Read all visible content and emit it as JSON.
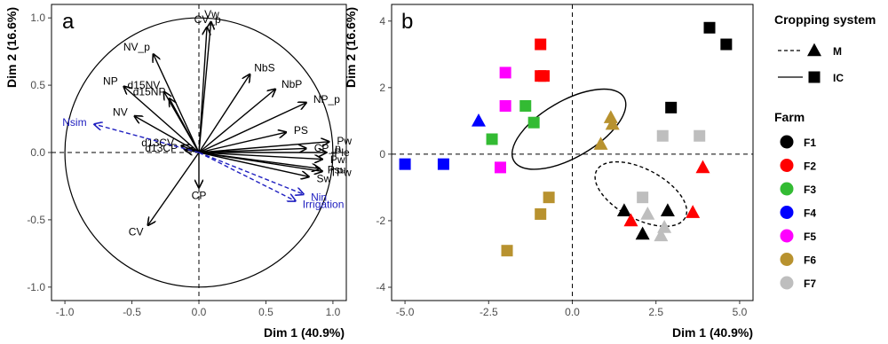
{
  "chart_data": [
    {
      "type": "scatter",
      "panel_label": "a",
      "xlabel": "Dim 1 (40.9%)",
      "ylabel": "Dim 2 (16.6%)",
      "xlim": [
        -1.1,
        1.1
      ],
      "ylim": [
        -1.1,
        1.1
      ],
      "xticks": [
        "-1.0",
        "-0.5",
        "0.0",
        "0.5",
        "1.0"
      ],
      "yticks": [
        "-1.0",
        "-0.5",
        "0.0",
        "0.5",
        "1.0"
      ],
      "active_color": "#000000",
      "supplementary_color": "#2020c0",
      "vectors": [
        {
          "name": "CV_p",
          "x": 0.06,
          "y": 0.93
        },
        {
          "name": "Vw",
          "x": 0.09,
          "y": 0.97
        },
        {
          "name": "NV_p",
          "x": -0.34,
          "y": 0.73
        },
        {
          "name": "NP",
          "x": -0.56,
          "y": 0.49
        },
        {
          "name": "d15NV",
          "x": -0.26,
          "y": 0.45
        },
        {
          "name": "d15NP",
          "x": -0.22,
          "y": 0.4
        },
        {
          "name": "NV",
          "x": -0.48,
          "y": 0.27
        },
        {
          "name": "NbS",
          "x": 0.38,
          "y": 0.58
        },
        {
          "name": "NbP",
          "x": 0.57,
          "y": 0.47
        },
        {
          "name": "NP_p",
          "x": 0.8,
          "y": 0.37
        },
        {
          "name": "PS",
          "x": 0.65,
          "y": 0.15
        },
        {
          "name": "Pw",
          "x": 0.97,
          "y": 0.08
        },
        {
          "name": "CP_p",
          "x": 0.8,
          "y": 0.03
        },
        {
          "name": "Ple",
          "x": 0.95,
          "y": 0.0
        },
        {
          "name": "Pwi",
          "x": 0.92,
          "y": -0.05
        },
        {
          "name": "Psu",
          "x": 0.9,
          "y": -0.12
        },
        {
          "name": "Sw",
          "x": 0.82,
          "y": -0.18
        },
        {
          "name": "TPw",
          "x": 0.92,
          "y": -0.14
        },
        {
          "name": "d13CV",
          "x": -0.13,
          "y": 0.05
        },
        {
          "name": "d13CP",
          "x": -0.1,
          "y": 0.02
        },
        {
          "name": "CP",
          "x": 0.0,
          "y": -0.26
        },
        {
          "name": "CV",
          "x": -0.38,
          "y": -0.54
        }
      ],
      "supplementary": [
        {
          "name": "Nsim",
          "x": -0.78,
          "y": 0.21
        },
        {
          "name": "Irrigation",
          "x": 0.72,
          "y": -0.36
        },
        {
          "name": "Nin",
          "x": 0.78,
          "y": -0.31
        }
      ]
    },
    {
      "type": "scatter",
      "panel_label": "b",
      "xlabel": "Dim 1 (40.9%)",
      "ylabel": "Dim 2 (16.6%)",
      "xlim": [
        -5.4,
        5.4
      ],
      "ylim": [
        -4.4,
        4.5
      ],
      "xticks": [
        -5.0,
        -2.5,
        0.0,
        2.5,
        5.0
      ],
      "xtick_labels": [
        "-5.0",
        "-2.5",
        "0.0",
        "2.5",
        "5.0"
      ],
      "yticks": [
        -4,
        -2,
        0,
        2,
        4
      ],
      "ytick_labels": [
        "-4",
        "-2",
        "0",
        "2",
        "4"
      ],
      "legend": {
        "cropping_title": "Cropping system",
        "cropping": [
          {
            "label": "M",
            "line": "dashed",
            "shape": "triangle"
          },
          {
            "label": "IC",
            "line": "solid",
            "shape": "square"
          }
        ],
        "farm_title": "Farm",
        "farms": [
          {
            "label": "F1",
            "color": "#000000"
          },
          {
            "label": "F2",
            "color": "#ff0000"
          },
          {
            "label": "F3",
            "color": "#33bb33"
          },
          {
            "label": "F4",
            "color": "#0000ff"
          },
          {
            "label": "F5",
            "color": "#ff00ff"
          },
          {
            "label": "F6",
            "color": "#b8922f"
          },
          {
            "label": "F7",
            "color": "#bebebe"
          }
        ]
      },
      "ellipses": [
        {
          "system": "IC",
          "cx": -0.1,
          "cy": 0.75,
          "rx": 1.9,
          "ry": 0.85,
          "angle_deg": 30
        },
        {
          "system": "M",
          "cx": 2.05,
          "cy": -1.2,
          "rx": 1.5,
          "ry": 0.75,
          "angle_deg": -28
        }
      ],
      "points": [
        {
          "farm": "F1",
          "shape": "square",
          "x": 4.1,
          "y": 3.8
        },
        {
          "farm": "F1",
          "shape": "square",
          "x": 4.6,
          "y": 3.3
        },
        {
          "farm": "F1",
          "shape": "square",
          "x": 2.95,
          "y": 1.4
        },
        {
          "farm": "F1",
          "shape": "triangle",
          "x": 1.55,
          "y": -1.7
        },
        {
          "farm": "F1",
          "shape": "triangle",
          "x": 2.85,
          "y": -1.7
        },
        {
          "farm": "F1",
          "shape": "triangle",
          "x": 2.1,
          "y": -2.4
        },
        {
          "farm": "F2",
          "shape": "square",
          "x": -0.95,
          "y": 3.3
        },
        {
          "farm": "F2",
          "shape": "square",
          "x": -0.95,
          "y": 2.35
        },
        {
          "farm": "F2",
          "shape": "square",
          "x": -0.85,
          "y": 2.35
        },
        {
          "farm": "F2",
          "shape": "triangle",
          "x": 3.9,
          "y": -0.4
        },
        {
          "farm": "F2",
          "shape": "triangle",
          "x": 3.6,
          "y": -1.75
        },
        {
          "farm": "F2",
          "shape": "triangle",
          "x": 1.75,
          "y": -2.0
        },
        {
          "farm": "F3",
          "shape": "square",
          "x": -1.4,
          "y": 1.45
        },
        {
          "farm": "F3",
          "shape": "square",
          "x": -1.15,
          "y": 0.95
        },
        {
          "farm": "F3",
          "shape": "square",
          "x": -2.4,
          "y": 0.45
        },
        {
          "farm": "F4",
          "shape": "triangle",
          "x": -2.8,
          "y": 1.0
        },
        {
          "farm": "F4",
          "shape": "square",
          "x": -5.0,
          "y": -0.3
        },
        {
          "farm": "F4",
          "shape": "square",
          "x": -3.85,
          "y": -0.3
        },
        {
          "farm": "F5",
          "shape": "square",
          "x": -2.0,
          "y": 2.45
        },
        {
          "farm": "F5",
          "shape": "square",
          "x": -2.0,
          "y": 1.45
        },
        {
          "farm": "F5",
          "shape": "square",
          "x": -2.15,
          "y": -0.4
        },
        {
          "farm": "F6",
          "shape": "triangle",
          "x": 1.15,
          "y": 1.1
        },
        {
          "farm": "F6",
          "shape": "triangle",
          "x": 1.2,
          "y": 0.9
        },
        {
          "farm": "F6",
          "shape": "triangle",
          "x": 0.85,
          "y": 0.3
        },
        {
          "farm": "F6",
          "shape": "square",
          "x": -0.7,
          "y": -1.3
        },
        {
          "farm": "F6",
          "shape": "square",
          "x": -0.95,
          "y": -1.8
        },
        {
          "farm": "F6",
          "shape": "square",
          "x": -1.95,
          "y": -2.9
        },
        {
          "farm": "F7",
          "shape": "square",
          "x": 2.7,
          "y": 0.55
        },
        {
          "farm": "F7",
          "shape": "square",
          "x": 3.8,
          "y": 0.55
        },
        {
          "farm": "F7",
          "shape": "square",
          "x": 2.1,
          "y": -1.3
        },
        {
          "farm": "F7",
          "shape": "triangle",
          "x": 2.25,
          "y": -1.8
        },
        {
          "farm": "F7",
          "shape": "triangle",
          "x": 2.75,
          "y": -2.2
        },
        {
          "farm": "F7",
          "shape": "triangle",
          "x": 2.65,
          "y": -2.45
        }
      ]
    }
  ]
}
